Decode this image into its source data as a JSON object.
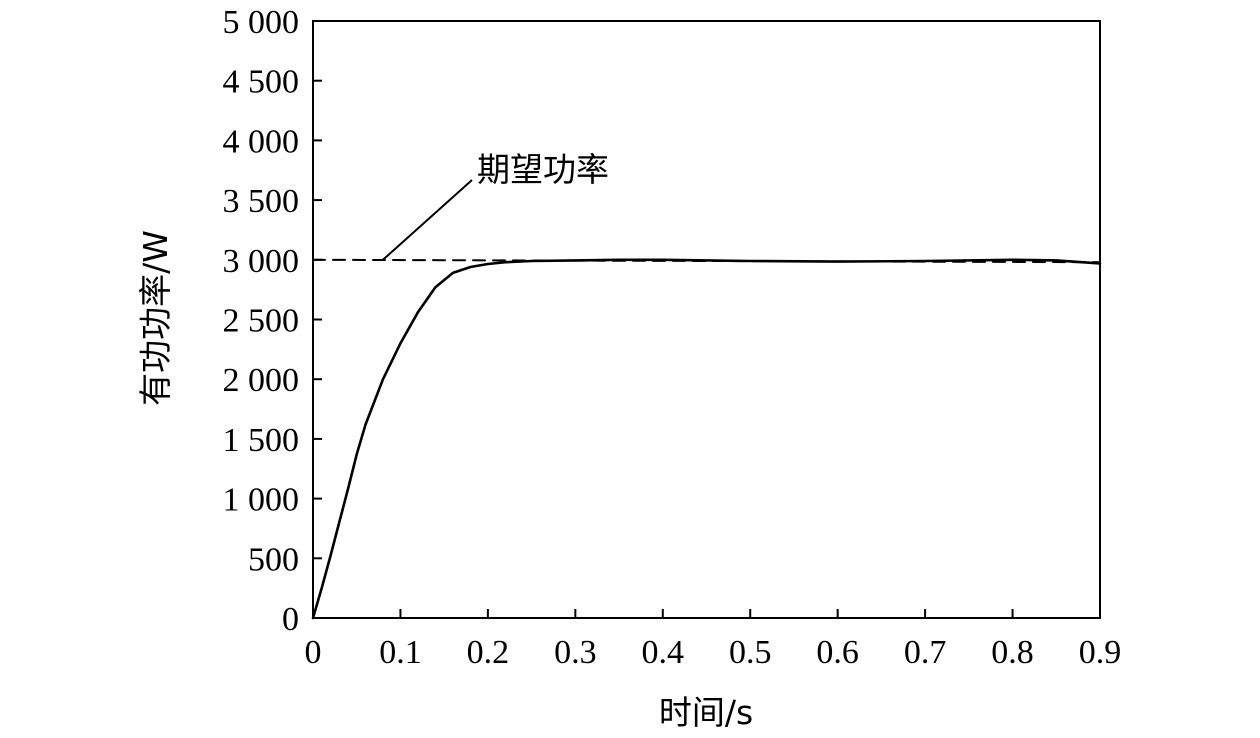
{
  "chart_data": {
    "type": "line",
    "title": "",
    "xlabel": "时间/s",
    "ylabel": "有功功率/W",
    "xlim": [
      0,
      0.9
    ],
    "ylim": [
      0,
      5000
    ],
    "x_ticks": [
      0,
      0.1,
      0.2,
      0.3,
      0.4,
      0.5,
      0.6,
      0.7,
      0.8,
      0.9
    ],
    "x_tick_labels": [
      "0",
      "0.1",
      "0.2",
      "0.3",
      "0.4",
      "0.5",
      "0.6",
      "0.7",
      "0.8",
      "0.9"
    ],
    "y_ticks": [
      0,
      500,
      1000,
      1500,
      2000,
      2500,
      3000,
      3500,
      4000,
      4500,
      5000
    ],
    "y_tick_labels": [
      "0",
      "500",
      "1 000",
      "1 500",
      "2 000",
      "2 500",
      "3 000",
      "3 500",
      "4 000",
      "4 500",
      "5 000"
    ],
    "grid": false,
    "legend": "none",
    "series": [
      {
        "style": "solid",
        "color": "#000000",
        "x": [
          0,
          0.01,
          0.02,
          0.03,
          0.04,
          0.05,
          0.06,
          0.08,
          0.1,
          0.12,
          0.14,
          0.16,
          0.18,
          0.2,
          0.22,
          0.25,
          0.3,
          0.35,
          0.4,
          0.5,
          0.6,
          0.7,
          0.8,
          0.85,
          0.9
        ],
        "y": [
          0,
          250,
          520,
          800,
          1080,
          1370,
          1620,
          2000,
          2300,
          2560,
          2770,
          2890,
          2940,
          2965,
          2980,
          2990,
          2995,
          3000,
          3000,
          2990,
          2985,
          2990,
          3000,
          2995,
          2970
        ]
      },
      {
        "style": "dashed",
        "color": "#000000",
        "x": [
          0,
          0.9
        ],
        "y": [
          3000,
          2980
        ]
      }
    ],
    "annotations": [
      {
        "text": "期望功率",
        "points_to": {
          "x": 0.08,
          "y": 3000
        }
      }
    ]
  }
}
